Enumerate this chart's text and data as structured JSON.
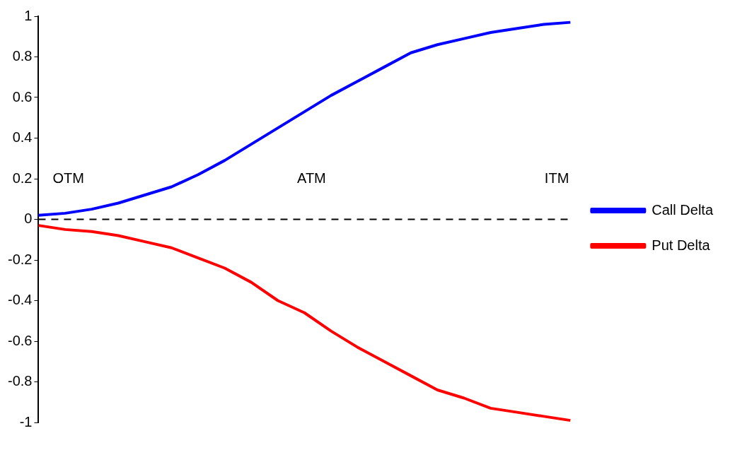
{
  "chart_data": {
    "type": "line",
    "categories": [
      null,
      null,
      null,
      null,
      null,
      null,
      null,
      null,
      null,
      null,
      null,
      null,
      null,
      null,
      null,
      null,
      null,
      null,
      null,
      null,
      null
    ],
    "series": [
      {
        "name": "Call Delta",
        "color": "#0000ff",
        "values": [
          0.02,
          0.03,
          0.05,
          0.08,
          0.12,
          0.16,
          0.22,
          0.29,
          0.37,
          0.45,
          0.53,
          0.61,
          0.68,
          0.75,
          0.82,
          0.86,
          0.89,
          0.92,
          0.94,
          0.96,
          0.97
        ]
      },
      {
        "name": "Put Delta",
        "color": "#ff0000",
        "values": [
          -0.03,
          -0.05,
          -0.06,
          -0.08,
          -0.11,
          -0.14,
          -0.19,
          -0.24,
          -0.31,
          -0.4,
          -0.46,
          -0.55,
          -0.63,
          -0.7,
          -0.77,
          -0.84,
          -0.88,
          -0.93,
          -0.95,
          -0.97,
          -0.99
        ]
      }
    ],
    "ylim": [
      -1,
      1
    ],
    "yticks": [
      -1,
      -0.8,
      -0.6,
      -0.4,
      -0.2,
      0,
      0.2,
      0.4,
      0.6,
      0.8,
      1
    ],
    "ref_lines": [
      {
        "axis": "y",
        "value": 0,
        "color": "#000000",
        "line_style": "dashed"
      }
    ],
    "annotations": [
      "OTM",
      "ATM",
      "ITM"
    ],
    "grid": false,
    "legend": "right",
    "marker": "none",
    "line_style": "solid"
  }
}
